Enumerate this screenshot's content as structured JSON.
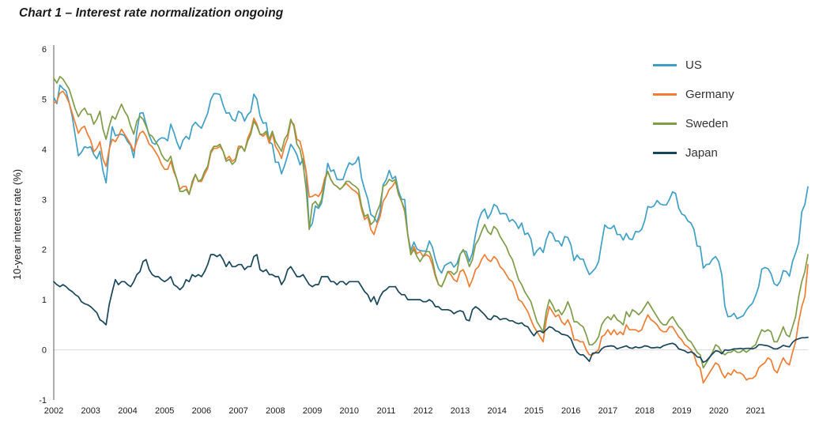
{
  "chart_data": {
    "type": "line",
    "title": "Chart 1 – Interest rate normalization ongoing",
    "ylabel": "10-year interest rate (%)",
    "ylim": [
      -1,
      6
    ],
    "yticks": [
      6,
      5,
      4,
      3,
      2,
      1,
      0,
      -1
    ],
    "x_start_year": 2002,
    "points_per_year": 12,
    "x_tick_labels": [
      "2002",
      "2003",
      "2004",
      "2005",
      "2006",
      "2007",
      "2008",
      "2009",
      "2010",
      "2011",
      "2012",
      "2013",
      "2014",
      "2015",
      "2016",
      "2017",
      "2018",
      "2019",
      "2020",
      "2021"
    ],
    "grid": "zero-line-only",
    "legend_position": "top-right",
    "colors": {
      "zero_line": "#d9d9d9",
      "axis_line": "#595959",
      "text": "#1a1a1a"
    },
    "series": [
      {
        "name": "US",
        "color": "#3f9fc6",
        "values": [
          5.04,
          4.91,
          5.28,
          5.21,
          5.16,
          4.93,
          4.65,
          4.26,
          3.87,
          3.94,
          4.05,
          4.03,
          4.05,
          3.9,
          3.81,
          3.96,
          3.57,
          3.33,
          3.98,
          4.45,
          4.27,
          4.29,
          4.3,
          4.27,
          4.15,
          4.08,
          3.83,
          4.35,
          4.72,
          4.73,
          4.5,
          4.28,
          4.13,
          4.1,
          4.19,
          4.23,
          4.22,
          4.17,
          4.5,
          4.34,
          4.14,
          4.0,
          4.18,
          4.26,
          4.2,
          4.46,
          4.54,
          4.47,
          4.42,
          4.57,
          4.72,
          4.99,
          5.11,
          5.11,
          5.09,
          4.88,
          4.72,
          4.73,
          4.6,
          4.56,
          4.76,
          4.72,
          4.56,
          4.69,
          4.75,
          5.1,
          5.0,
          4.67,
          4.52,
          4.53,
          4.15,
          4.1,
          3.74,
          3.74,
          3.51,
          3.68,
          3.88,
          4.1,
          4.01,
          3.89,
          3.69,
          3.81,
          3.53,
          2.42,
          2.52,
          2.87,
          2.82,
          2.93,
          3.29,
          3.72,
          3.56,
          3.59,
          3.4,
          3.39,
          3.4,
          3.59,
          3.73,
          3.69,
          3.73,
          3.85,
          3.42,
          3.2,
          3.01,
          2.7,
          2.65,
          2.54,
          2.76,
          3.29,
          3.39,
          3.58,
          3.41,
          3.46,
          3.17,
          3.0,
          3.0,
          2.3,
          1.98,
          2.15,
          2.01,
          1.98,
          1.97,
          1.97,
          2.17,
          2.05,
          1.8,
          1.62,
          1.53,
          1.68,
          1.72,
          1.75,
          1.65,
          1.72,
          1.91,
          1.98,
          1.96,
          1.76,
          1.93,
          2.3,
          2.58,
          2.74,
          2.81,
          2.62,
          2.72,
          2.9,
          2.86,
          2.71,
          2.72,
          2.71,
          2.56,
          2.6,
          2.54,
          2.42,
          2.53,
          2.3,
          2.33,
          2.21,
          1.88,
          1.98,
          2.04,
          1.94,
          2.2,
          2.36,
          2.32,
          2.17,
          2.17,
          2.07,
          2.26,
          2.24,
          2.09,
          1.78,
          1.89,
          1.81,
          1.81,
          1.64,
          1.5,
          1.56,
          1.63,
          1.76,
          2.14,
          2.49,
          2.43,
          2.42,
          2.48,
          2.3,
          2.3,
          2.19,
          2.32,
          2.21,
          2.2,
          2.36,
          2.35,
          2.4,
          2.58,
          2.86,
          2.84,
          2.87,
          2.98,
          2.91,
          2.89,
          2.89,
          3.0,
          3.15,
          3.12,
          2.83,
          2.71,
          2.68,
          2.57,
          2.53,
          2.4,
          2.07,
          2.06,
          1.63,
          1.7,
          1.71,
          1.81,
          1.86,
          1.76,
          1.5,
          0.87,
          0.66,
          0.67,
          0.73,
          0.62,
          0.65,
          0.68,
          0.79,
          0.87,
          0.93,
          1.08,
          1.26,
          1.61,
          1.64,
          1.62,
          1.52,
          1.32,
          1.28,
          1.37,
          1.58,
          1.56,
          1.47,
          1.76,
          1.93,
          2.13,
          2.75,
          2.9,
          3.25
        ]
      },
      {
        "name": "Germany",
        "color": "#ef7d33",
        "values": [
          4.92,
          4.96,
          5.12,
          5.16,
          5.06,
          4.92,
          4.72,
          4.52,
          4.32,
          4.42,
          4.46,
          4.3,
          4.18,
          3.95,
          4.02,
          4.15,
          3.8,
          3.66,
          4.0,
          4.2,
          4.15,
          4.26,
          4.4,
          4.3,
          4.2,
          4.1,
          3.96,
          4.16,
          4.32,
          4.36,
          4.26,
          4.1,
          4.05,
          3.95,
          3.85,
          3.7,
          3.6,
          3.6,
          3.76,
          3.55,
          3.4,
          3.2,
          3.26,
          3.26,
          3.1,
          3.3,
          3.5,
          3.36,
          3.36,
          3.5,
          3.62,
          3.92,
          4.02,
          4.02,
          4.06,
          3.96,
          3.8,
          3.86,
          3.76,
          3.8,
          4.06,
          4.06,
          3.96,
          4.22,
          4.36,
          4.62,
          4.5,
          4.3,
          4.26,
          4.32,
          4.12,
          4.32,
          4.06,
          3.96,
          3.82,
          4.06,
          4.22,
          4.56,
          4.5,
          4.2,
          4.16,
          3.9,
          3.56,
          3.05,
          3.06,
          3.1,
          3.06,
          3.16,
          3.42,
          3.56,
          3.4,
          3.3,
          3.26,
          3.2,
          3.26,
          3.32,
          3.26,
          3.2,
          3.16,
          3.1,
          2.8,
          2.6,
          2.66,
          2.4,
          2.3,
          2.5,
          2.66,
          2.96,
          3.06,
          3.2,
          3.26,
          3.36,
          3.1,
          2.96,
          2.76,
          2.3,
          1.9,
          2.06,
          1.92,
          1.96,
          1.86,
          1.9,
          1.86,
          1.7,
          1.46,
          1.3,
          1.26,
          1.4,
          1.56,
          1.5,
          1.4,
          1.36,
          1.56,
          1.6,
          1.46,
          1.26,
          1.4,
          1.6,
          1.66,
          1.8,
          1.9,
          1.8,
          1.76,
          1.86,
          1.8,
          1.66,
          1.6,
          1.5,
          1.4,
          1.36,
          1.2,
          1.0,
          0.96,
          0.86,
          0.76,
          0.6,
          0.46,
          0.36,
          0.26,
          0.16,
          0.6,
          0.86,
          0.76,
          0.66,
          0.7,
          0.56,
          0.5,
          0.6,
          0.46,
          0.2,
          0.2,
          0.16,
          0.16,
          0.0,
          -0.1,
          -0.1,
          -0.05,
          0.0,
          0.26,
          0.3,
          0.4,
          0.3,
          0.4,
          0.3,
          0.36,
          0.3,
          0.5,
          0.4,
          0.4,
          0.4,
          0.36,
          0.4,
          0.56,
          0.7,
          0.6,
          0.56,
          0.5,
          0.4,
          0.36,
          0.36,
          0.46,
          0.46,
          0.36,
          0.26,
          0.2,
          0.1,
          0.06,
          0.0,
          -0.1,
          -0.3,
          -0.36,
          -0.66,
          -0.56,
          -0.46,
          -0.36,
          -0.26,
          -0.3,
          -0.46,
          -0.56,
          -0.46,
          -0.5,
          -0.4,
          -0.46,
          -0.46,
          -0.5,
          -0.6,
          -0.57,
          -0.57,
          -0.52,
          -0.36,
          -0.3,
          -0.26,
          -0.16,
          -0.2,
          -0.4,
          -0.46,
          -0.3,
          -0.16,
          -0.26,
          -0.3,
          -0.05,
          0.16,
          0.56,
          0.86,
          1.06,
          1.7
        ]
      },
      {
        "name": "Sweden",
        "color": "#7f9c49",
        "values": [
          5.42,
          5.32,
          5.45,
          5.4,
          5.3,
          5.2,
          5.0,
          4.8,
          4.65,
          4.76,
          4.82,
          4.7,
          4.7,
          4.5,
          4.6,
          4.76,
          4.4,
          4.2,
          4.46,
          4.66,
          4.6,
          4.76,
          4.9,
          4.76,
          4.66,
          4.46,
          4.3,
          4.56,
          4.66,
          4.6,
          4.46,
          4.3,
          4.26,
          4.16,
          4.06,
          3.9,
          3.8,
          3.76,
          3.86,
          3.6,
          3.4,
          3.16,
          3.16,
          3.2,
          3.1,
          3.36,
          3.5,
          3.36,
          3.4,
          3.56,
          3.66,
          3.96,
          4.06,
          4.06,
          4.1,
          3.96,
          3.76,
          3.8,
          3.7,
          3.76,
          4.0,
          4.06,
          3.96,
          4.16,
          4.3,
          4.56,
          4.46,
          4.3,
          4.3,
          4.36,
          4.2,
          4.36,
          4.16,
          4.06,
          3.96,
          4.2,
          4.3,
          4.6,
          4.46,
          4.1,
          4.0,
          3.7,
          3.2,
          2.4,
          2.9,
          2.96,
          2.86,
          3.0,
          3.36,
          3.56,
          3.4,
          3.3,
          3.26,
          3.2,
          3.26,
          3.36,
          3.36,
          3.3,
          3.26,
          3.2,
          2.86,
          2.66,
          2.7,
          2.5,
          2.56,
          2.76,
          2.9,
          3.26,
          3.3,
          3.4,
          3.36,
          3.4,
          3.1,
          2.96,
          2.8,
          2.3,
          1.9,
          2.0,
          1.86,
          1.76,
          1.86,
          1.96,
          1.96,
          1.8,
          1.5,
          1.3,
          1.26,
          1.4,
          1.56,
          1.56,
          1.5,
          1.56,
          1.9,
          2.0,
          1.86,
          1.66,
          1.8,
          2.1,
          2.2,
          2.36,
          2.5,
          2.36,
          2.3,
          2.46,
          2.4,
          2.26,
          2.16,
          2.06,
          1.9,
          1.8,
          1.6,
          1.4,
          1.3,
          1.16,
          1.06,
          0.96,
          0.76,
          0.56,
          0.46,
          0.36,
          0.76,
          1.0,
          0.9,
          0.76,
          0.8,
          0.7,
          0.8,
          0.96,
          0.8,
          0.56,
          0.56,
          0.5,
          0.46,
          0.3,
          0.1,
          0.1,
          0.16,
          0.26,
          0.5,
          0.6,
          0.66,
          0.6,
          0.7,
          0.6,
          0.56,
          0.5,
          0.76,
          0.66,
          0.8,
          0.76,
          0.7,
          0.76,
          0.86,
          0.96,
          0.86,
          0.76,
          0.66,
          0.56,
          0.5,
          0.5,
          0.6,
          0.66,
          0.56,
          0.46,
          0.4,
          0.3,
          0.2,
          0.16,
          0.06,
          -0.05,
          -0.1,
          -0.36,
          -0.26,
          -0.16,
          -0.05,
          0.1,
          0.06,
          -0.05,
          -0.1,
          -0.05,
          -0.05,
          0.0,
          -0.05,
          -0.05,
          0.0,
          -0.05,
          0.0,
          0.06,
          0.1,
          0.26,
          0.4,
          0.36,
          0.4,
          0.36,
          0.16,
          0.16,
          0.3,
          0.46,
          0.3,
          0.26,
          0.46,
          0.66,
          1.06,
          1.36,
          1.56,
          1.9
        ]
      },
      {
        "name": "Japan",
        "color": "#17455c",
        "values": [
          1.36,
          1.3,
          1.26,
          1.3,
          1.26,
          1.2,
          1.16,
          1.1,
          1.06,
          0.96,
          0.92,
          0.9,
          0.86,
          0.8,
          0.74,
          0.6,
          0.56,
          0.5,
          0.9,
          1.16,
          1.4,
          1.3,
          1.36,
          1.36,
          1.3,
          1.26,
          1.36,
          1.5,
          1.56,
          1.76,
          1.8,
          1.6,
          1.5,
          1.46,
          1.46,
          1.4,
          1.36,
          1.4,
          1.46,
          1.3,
          1.26,
          1.2,
          1.26,
          1.4,
          1.36,
          1.5,
          1.46,
          1.5,
          1.46,
          1.56,
          1.7,
          1.9,
          1.9,
          1.86,
          1.9,
          1.8,
          1.66,
          1.76,
          1.66,
          1.66,
          1.7,
          1.7,
          1.6,
          1.66,
          1.66,
          1.86,
          1.9,
          1.6,
          1.56,
          1.6,
          1.5,
          1.5,
          1.46,
          1.46,
          1.3,
          1.4,
          1.6,
          1.66,
          1.56,
          1.46,
          1.46,
          1.5,
          1.4,
          1.3,
          1.26,
          1.3,
          1.3,
          1.46,
          1.46,
          1.46,
          1.36,
          1.36,
          1.3,
          1.36,
          1.36,
          1.3,
          1.36,
          1.36,
          1.36,
          1.36,
          1.26,
          1.16,
          1.1,
          0.96,
          1.06,
          0.9,
          1.06,
          1.16,
          1.2,
          1.26,
          1.26,
          1.26,
          1.16,
          1.1,
          1.1,
          1.0,
          1.0,
          1.0,
          1.0,
          1.0,
          0.96,
          0.96,
          1.0,
          0.96,
          0.86,
          0.86,
          0.8,
          0.8,
          0.8,
          0.78,
          0.72,
          0.76,
          0.78,
          0.76,
          0.6,
          0.58,
          0.8,
          0.86,
          0.82,
          0.76,
          0.7,
          0.62,
          0.6,
          0.68,
          0.66,
          0.6,
          0.62,
          0.62,
          0.58,
          0.58,
          0.54,
          0.52,
          0.54,
          0.48,
          0.46,
          0.36,
          0.28,
          0.36,
          0.38,
          0.34,
          0.4,
          0.46,
          0.44,
          0.38,
          0.36,
          0.31,
          0.3,
          0.28,
          0.22,
          0.06,
          -0.05,
          -0.1,
          -0.1,
          -0.16,
          -0.23,
          -0.07,
          -0.06,
          -0.06,
          0.02,
          0.06,
          0.07,
          0.08,
          0.07,
          0.02,
          0.04,
          0.06,
          0.08,
          0.04,
          0.03,
          0.06,
          0.04,
          0.05,
          0.08,
          0.07,
          0.04,
          0.04,
          0.05,
          0.04,
          0.08,
          0.1,
          0.12,
          0.13,
          0.1,
          0.02,
          0.0,
          -0.02,
          -0.06,
          -0.04,
          -0.07,
          -0.14,
          -0.15,
          -0.25,
          -0.22,
          -0.15,
          -0.08,
          -0.02,
          -0.03,
          -0.08,
          0.0,
          -0.01,
          0.0,
          0.02,
          0.02,
          0.03,
          0.02,
          0.03,
          0.03,
          0.02,
          0.04,
          0.1,
          0.1,
          0.09,
          0.08,
          0.05,
          0.02,
          0.02,
          0.05,
          0.09,
          0.07,
          0.06,
          0.15,
          0.2,
          0.22,
          0.24,
          0.24,
          0.25
        ]
      }
    ]
  }
}
